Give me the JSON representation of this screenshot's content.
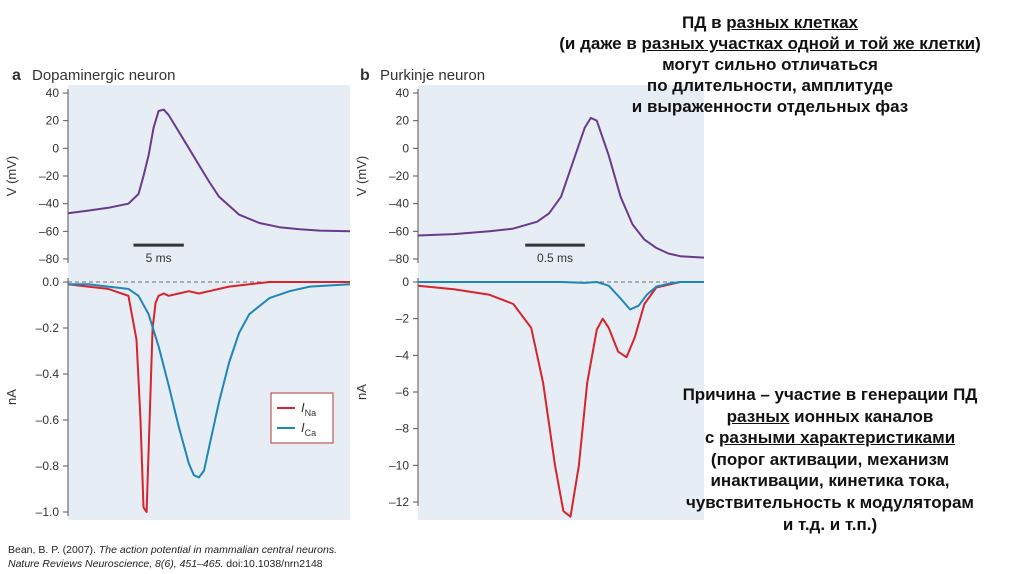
{
  "heading": {
    "line1_prefix": "ПД в ",
    "line1_link": "разных клетках",
    "line2_prefix": "(и даже в ",
    "line2_link": "разных участках одной и той же клетки",
    "line2_suffix": ")",
    "line3": "могут сильно отличаться",
    "line4": "по длительности, амплитуде",
    "line5": "и выраженности отдельных фаз"
  },
  "reason": {
    "line1": "Причина – участие в генерации ПД",
    "line2_link": "разных",
    "line2_suffix": " ионных каналов",
    "line3_prefix": "с ",
    "line3_link": "разными характеристиками",
    "line4": "(порог активации, механизм",
    "line5": "инактивации, кинетика тока,",
    "line6": "чувствительность к модуляторам",
    "line7": "и т.д. и т.п.)"
  },
  "citation": {
    "line1_plain": "Bean, B. P. (2007). ",
    "line1_italic": "The action potential in mammalian central neurons.",
    "line2_italic": "Nature Reviews Neuroscience, 8(6), 451–465.",
    "line2_plain": " doi:10.1038/nrn2148"
  },
  "colors": {
    "panel_bg": "#e6edf5",
    "voltage": "#6a3a8c",
    "na": "#d8232a",
    "ca": "#1e86b8",
    "axis": "#555555"
  },
  "chart_data": [
    {
      "id": "a_voltage",
      "type": "line",
      "panel_letter": "a",
      "title": "Dopaminergic neuron",
      "ylabel": "V (mV)",
      "ylim": [
        -85,
        40
      ],
      "xlim": [
        0,
        28
      ],
      "yticks": [
        40,
        20,
        0,
        -20,
        -40,
        -60,
        -80
      ],
      "ytick_labels": [
        "40",
        "20",
        "0",
        "–20",
        "–40",
        "–60",
        "–80"
      ],
      "scale_bar": {
        "label": "5 ms",
        "from": 6.5,
        "to": 11.5,
        "y": -70
      },
      "series": [
        {
          "color_key": "voltage",
          "x": [
            0,
            2,
            4,
            6,
            7,
            7.5,
            8,
            8.5,
            9,
            9.5,
            10,
            11,
            12,
            13,
            14,
            15,
            17,
            19,
            21,
            23,
            25,
            28
          ],
          "y": [
            -47,
            -45,
            -43,
            -40,
            -33,
            -20,
            -5,
            15,
            27,
            28,
            24,
            12,
            0,
            -12,
            -24,
            -35,
            -48,
            -54,
            -57,
            -58.5,
            -59.5,
            -60
          ]
        }
      ]
    },
    {
      "id": "a_current",
      "type": "line",
      "ylabel": "nA",
      "ylim": [
        -1.02,
        0.02
      ],
      "xlim": [
        0,
        28
      ],
      "yticks": [
        0.0,
        -0.2,
        -0.4,
        -0.6,
        -0.8,
        -1.0
      ],
      "ytick_labels": [
        "0.0",
        "–0.2",
        "–0.4",
        "–0.6",
        "–0.8",
        "–1.0"
      ],
      "zero_line": true,
      "series": [
        {
          "name": "I",
          "subscript": "Na",
          "color_key": "na",
          "x": [
            0,
            2,
            4,
            6,
            6.8,
            7.2,
            7.5,
            7.8,
            8.1,
            8.4,
            8.7,
            9.0,
            9.5,
            10,
            11,
            12,
            13,
            14,
            16,
            20,
            28
          ],
          "y": [
            -0.01,
            -0.02,
            -0.03,
            -0.06,
            -0.25,
            -0.6,
            -0.98,
            -1.0,
            -0.6,
            -0.2,
            -0.09,
            -0.06,
            -0.05,
            -0.06,
            -0.05,
            -0.04,
            -0.05,
            -0.04,
            -0.02,
            0.0,
            0.0
          ]
        },
        {
          "name": "I",
          "subscript": "Ca",
          "color_key": "ca",
          "x": [
            0,
            2,
            4,
            6,
            7,
            8,
            9,
            10,
            11,
            12,
            12.5,
            13,
            13.5,
            14,
            15,
            16,
            17,
            18,
            20,
            22,
            24,
            28
          ],
          "y": [
            -0.01,
            -0.01,
            -0.02,
            -0.03,
            -0.06,
            -0.14,
            -0.28,
            -0.45,
            -0.63,
            -0.79,
            -0.84,
            -0.85,
            -0.82,
            -0.72,
            -0.52,
            -0.35,
            -0.22,
            -0.14,
            -0.07,
            -0.04,
            -0.02,
            -0.01
          ]
        }
      ],
      "legend": {
        "placement": "center-right"
      }
    },
    {
      "id": "b_voltage",
      "type": "line",
      "panel_letter": "b",
      "title": "Purkinje neuron",
      "ylabel": "V (mV)",
      "ylim": [
        -85,
        40
      ],
      "xlim": [
        0,
        2.4
      ],
      "yticks": [
        40,
        20,
        0,
        -20,
        -40,
        -60,
        -80
      ],
      "ytick_labels": [
        "40",
        "20",
        "0",
        "–20",
        "–40",
        "–60",
        "–80"
      ],
      "scale_bar": {
        "label": "0.5 ms",
        "from": 0.9,
        "to": 1.4,
        "y": -70
      },
      "series": [
        {
          "color_key": "voltage",
          "x": [
            0,
            0.3,
            0.6,
            0.8,
            1.0,
            1.1,
            1.2,
            1.3,
            1.4,
            1.45,
            1.5,
            1.6,
            1.7,
            1.8,
            1.9,
            2.0,
            2.1,
            2.2,
            2.4
          ],
          "y": [
            -63,
            -62,
            -60,
            -58,
            -53,
            -47,
            -35,
            -10,
            15,
            22,
            20,
            -5,
            -35,
            -55,
            -66,
            -72,
            -76,
            -78,
            -79
          ]
        }
      ]
    },
    {
      "id": "b_current",
      "type": "line",
      "ylabel": "nA",
      "ylim": [
        -13,
        0.2
      ],
      "xlim": [
        0,
        2.4
      ],
      "yticks": [
        0,
        -2,
        -4,
        -6,
        -8,
        -10,
        -12
      ],
      "ytick_labels": [
        "0",
        "–2",
        "–4",
        "–6",
        "–8",
        "–10",
        "–12"
      ],
      "zero_line": true,
      "series": [
        {
          "name": "I",
          "subscript": "Na",
          "color_key": "na",
          "x": [
            0,
            0.3,
            0.6,
            0.8,
            0.95,
            1.05,
            1.15,
            1.22,
            1.28,
            1.35,
            1.42,
            1.5,
            1.55,
            1.6,
            1.68,
            1.75,
            1.82,
            1.9,
            2.0,
            2.2,
            2.4
          ],
          "y": [
            -0.2,
            -0.4,
            -0.7,
            -1.2,
            -2.5,
            -5.5,
            -10,
            -12.5,
            -12.8,
            -10,
            -5.5,
            -2.6,
            -2.0,
            -2.5,
            -3.8,
            -4.1,
            -3.0,
            -1.2,
            -0.3,
            0.0,
            0.0
          ]
        },
        {
          "name": "I",
          "subscript": "Ca",
          "color_key": "ca",
          "x": [
            0,
            1.2,
            1.4,
            1.5,
            1.6,
            1.7,
            1.78,
            1.85,
            1.92,
            2.0,
            2.1,
            2.2,
            2.4
          ],
          "y": [
            0.0,
            0.0,
            -0.05,
            0.0,
            -0.2,
            -0.9,
            -1.5,
            -1.3,
            -0.7,
            -0.25,
            -0.1,
            0.0,
            0.0
          ]
        }
      ]
    }
  ]
}
